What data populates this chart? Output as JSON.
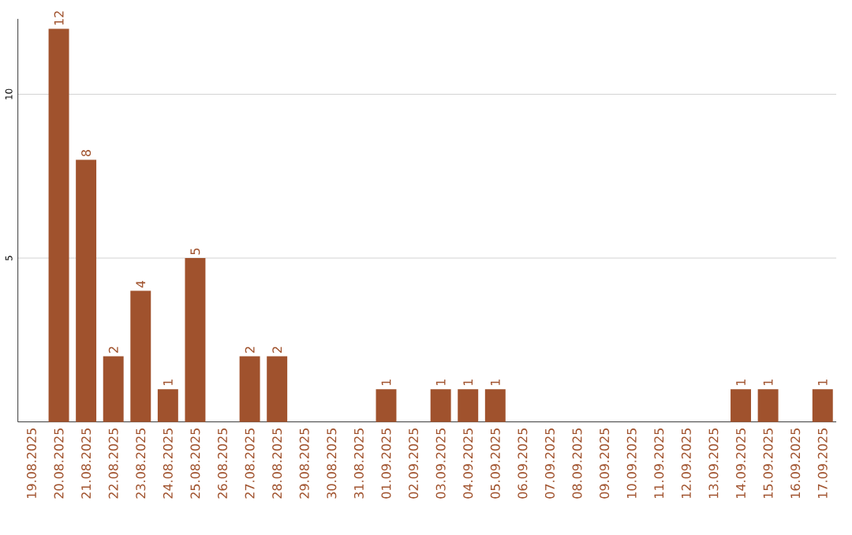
{
  "chart_data": {
    "type": "bar",
    "categories": [
      "19.08.2025",
      "20.08.2025",
      "21.08.2025",
      "22.08.2025",
      "23.08.2025",
      "24.08.2025",
      "25.08.2025",
      "26.08.2025",
      "27.08.2025",
      "28.08.2025",
      "29.08.2025",
      "30.08.2025",
      "31.08.2025",
      "01.09.2025",
      "02.09.2025",
      "03.09.2025",
      "04.09.2025",
      "05.09.2025",
      "06.09.2025",
      "07.09.2025",
      "08.09.2025",
      "09.09.2025",
      "10.09.2025",
      "11.09.2025",
      "12.09.2025",
      "13.09.2025",
      "14.09.2025",
      "15.09.2025",
      "16.09.2025",
      "17.09.2025"
    ],
    "values": [
      0,
      12,
      8,
      2,
      4,
      1,
      5,
      0,
      2,
      2,
      0,
      0,
      0,
      1,
      0,
      1,
      1,
      1,
      0,
      0,
      0,
      0,
      0,
      0,
      0,
      0,
      1,
      1,
      0,
      1
    ],
    "value_labels": [
      null,
      "12",
      "8",
      "2",
      "4",
      "1",
      "5",
      null,
      "2",
      "2",
      null,
      null,
      null,
      "1",
      null,
      "1",
      "1",
      "1",
      null,
      null,
      null,
      null,
      null,
      null,
      null,
      null,
      "1",
      "1",
      null,
      "1"
    ],
    "color": "#a0522d",
    "ylim": [
      0,
      12.3
    ],
    "yticks": [
      5,
      10
    ],
    "grid": "y"
  }
}
